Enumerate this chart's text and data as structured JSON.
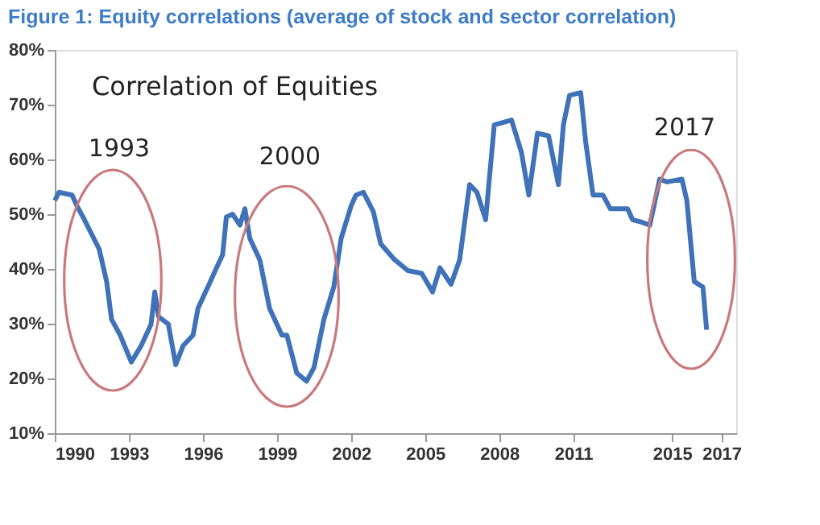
{
  "chart_data": {
    "type": "line",
    "title": "Figure 1: Equity correlations (average of stock and sector correlation)",
    "x": [
      1990,
      1990.17,
      1990.7,
      1990.9,
      1991.2,
      1991.8,
      1992.1,
      1992.3,
      1992.65,
      1993.1,
      1993.5,
      1993.9,
      1994.05,
      1994.2,
      1994.6,
      1994.9,
      1995.2,
      1995.6,
      1995.8,
      1996.3,
      1996.5,
      1996.8,
      1996.95,
      1997.2,
      1997.5,
      1997.7,
      1997.9,
      1998.3,
      1998.7,
      1999.2,
      1999.4,
      1999.8,
      2000.2,
      2000.5,
      2000.9,
      2001.3,
      2001.6,
      2002.0,
      2002.2,
      2002.5,
      2002.9,
      2003.2,
      2003.76,
      2004.3,
      2004.86,
      2005.3,
      2005.6,
      2006.05,
      2006.4,
      2006.8,
      2007.1,
      2007.45,
      2007.8,
      2008.5,
      2008.9,
      2009.2,
      2009.55,
      2010.0,
      2010.4,
      2010.6,
      2010.85,
      2011.3,
      2011.5,
      2011.8,
      2012.2,
      2012.5,
      2013.2,
      2013.4,
      2013.8,
      2014.1,
      2014.5,
      2014.8,
      2015.4,
      2015.6,
      2015.9,
      2016.25,
      2016.4
    ],
    "series": [
      {
        "color": "#3f72b8",
        "values": [
          52.5,
          54,
          53.5,
          51.5,
          49,
          43.6,
          37.7,
          30.8,
          27.9,
          23,
          26,
          29.9,
          35.8,
          31.3,
          29.9,
          22.5,
          26,
          27.9,
          32.8,
          37.7,
          39.7,
          42.6,
          49.5,
          50,
          48,
          51,
          45.6,
          41.7,
          32.8,
          27.9,
          27.9,
          21,
          19.5,
          22,
          30.8,
          36.7,
          45.6,
          51.5,
          53.5,
          54,
          50.5,
          44.6,
          41.7,
          39.7,
          39.2,
          35.8,
          40.2,
          37.2,
          41.7,
          55.4,
          54,
          49,
          66.3,
          67.2,
          61.3,
          53.5,
          64.8,
          64.3,
          55.4,
          66.3,
          71.7,
          72.2,
          63.3,
          53.5,
          53.5,
          51,
          51,
          49,
          48.5,
          48,
          56.4,
          55.9,
          56.4,
          52.5,
          37.7,
          36.7,
          28.9
        ]
      }
    ],
    "xlim": [
      1990,
      2017.6
    ],
    "xticks": [
      1990,
      1993,
      1996,
      1999,
      2002,
      2005,
      2008,
      2011,
      2015,
      2017
    ],
    "ylim": [
      10,
      80
    ],
    "yticks": [
      {
        "value": 10,
        "label": "10%"
      },
      {
        "value": 20,
        "label": "20%"
      },
      {
        "value": 30,
        "label": "30%"
      },
      {
        "value": 40,
        "label": "40%"
      },
      {
        "value": 50,
        "label": "50%"
      },
      {
        "value": 60,
        "label": "60%"
      },
      {
        "value": 70,
        "label": "70%"
      },
      {
        "value": 80,
        "label": "80%"
      }
    ],
    "annotations": [
      "Correlation of Equities",
      "1993",
      "2000",
      "2017"
    ],
    "grid": false,
    "marker": "none",
    "line_style": "solid"
  }
}
